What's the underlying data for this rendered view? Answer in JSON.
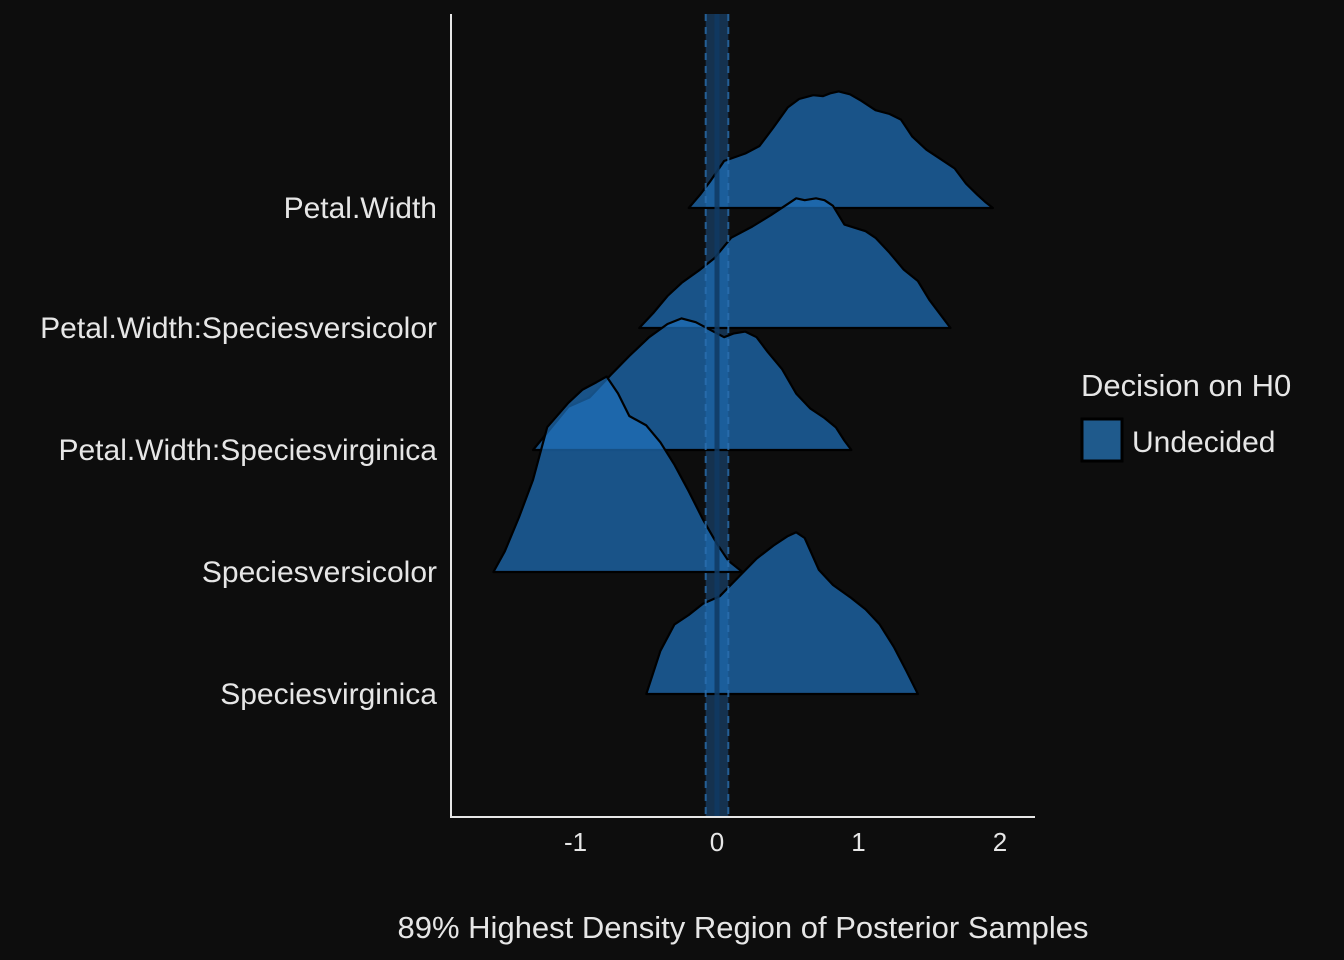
{
  "chart_data": {
    "type": "ridgeline density",
    "xlabel": "89% Highest Density Region of Posterior Samples",
    "ylabel": "",
    "xlim": [
      -1.9,
      2.25
    ],
    "xticks": [
      "-1",
      "0",
      "1",
      "2"
    ],
    "xtick_values": [
      -1,
      0,
      1,
      2
    ],
    "rope": {
      "low": -0.08,
      "high": 0.08,
      "center": 0
    },
    "grid": false,
    "legend": {
      "title": "Decision on H0",
      "position": "right",
      "entries": [
        {
          "label": "Undecided",
          "color": "#1f5a8c"
        }
      ]
    },
    "colors": {
      "density_fill": "#1f6fb8",
      "density_stroke": "#000000",
      "rope_fill": "#1e5fa0",
      "background": "#0d0d0d",
      "axis": "#e6e6e6"
    },
    "series": [
      {
        "name": "Petal.Width",
        "hdi": [
          -0.2,
          1.95
        ],
        "density": [
          [
            -0.2,
            0.0
          ],
          [
            -0.12,
            0.14
          ],
          [
            -0.05,
            0.28
          ],
          [
            0.05,
            0.5
          ],
          [
            0.2,
            0.58
          ],
          [
            0.3,
            0.66
          ],
          [
            0.4,
            0.86
          ],
          [
            0.5,
            1.07
          ],
          [
            0.58,
            1.16
          ],
          [
            0.68,
            1.2
          ],
          [
            0.75,
            1.19
          ],
          [
            0.8,
            1.22
          ],
          [
            0.86,
            1.24
          ],
          [
            0.94,
            1.21
          ],
          [
            1.02,
            1.14
          ],
          [
            1.12,
            1.04
          ],
          [
            1.22,
            1.0
          ],
          [
            1.3,
            0.94
          ],
          [
            1.38,
            0.76
          ],
          [
            1.48,
            0.62
          ],
          [
            1.58,
            0.52
          ],
          [
            1.68,
            0.42
          ],
          [
            1.76,
            0.26
          ],
          [
            1.84,
            0.14
          ],
          [
            1.9,
            0.06
          ],
          [
            1.95,
            0.0
          ]
        ]
      },
      {
        "name": "Petal.Width:Speciesversicolor",
        "hdi": [
          -0.55,
          1.65
        ],
        "density": [
          [
            -0.55,
            0.0
          ],
          [
            -0.45,
            0.16
          ],
          [
            -0.35,
            0.34
          ],
          [
            -0.25,
            0.48
          ],
          [
            -0.12,
            0.62
          ],
          [
            -0.02,
            0.74
          ],
          [
            0.1,
            0.96
          ],
          [
            0.25,
            1.08
          ],
          [
            0.38,
            1.2
          ],
          [
            0.5,
            1.32
          ],
          [
            0.56,
            1.38
          ],
          [
            0.62,
            1.36
          ],
          [
            0.7,
            1.38
          ],
          [
            0.76,
            1.36
          ],
          [
            0.82,
            1.3
          ],
          [
            0.9,
            1.1
          ],
          [
            1.05,
            1.03
          ],
          [
            1.12,
            0.96
          ],
          [
            1.22,
            0.8
          ],
          [
            1.32,
            0.62
          ],
          [
            1.42,
            0.5
          ],
          [
            1.5,
            0.3
          ],
          [
            1.58,
            0.14
          ],
          [
            1.65,
            0.0
          ]
        ]
      },
      {
        "name": "Petal.Width:Speciesvirginica",
        "hdi": [
          -1.3,
          0.95
        ],
        "density": [
          [
            -1.3,
            0.0
          ],
          [
            -1.05,
            0.46
          ],
          [
            -0.9,
            0.56
          ],
          [
            -0.75,
            0.8
          ],
          [
            -0.62,
            1.0
          ],
          [
            -0.48,
            1.2
          ],
          [
            -0.35,
            1.34
          ],
          [
            -0.25,
            1.4
          ],
          [
            -0.15,
            1.36
          ],
          [
            -0.05,
            1.28
          ],
          [
            0.05,
            1.2
          ],
          [
            0.12,
            1.24
          ],
          [
            0.2,
            1.26
          ],
          [
            0.28,
            1.2
          ],
          [
            0.36,
            1.04
          ],
          [
            0.46,
            0.86
          ],
          [
            0.56,
            0.6
          ],
          [
            0.66,
            0.44
          ],
          [
            0.76,
            0.34
          ],
          [
            0.84,
            0.24
          ],
          [
            0.9,
            0.1
          ],
          [
            0.95,
            0.0
          ]
        ]
      },
      {
        "name": "Speciesversicolor",
        "hdi": [
          -1.58,
          0.18
        ],
        "density": [
          [
            -1.58,
            0.0
          ],
          [
            -1.5,
            0.22
          ],
          [
            -1.4,
            0.58
          ],
          [
            -1.3,
            0.98
          ],
          [
            -1.2,
            1.54
          ],
          [
            -1.05,
            1.8
          ],
          [
            -0.95,
            1.94
          ],
          [
            -0.85,
            2.02
          ],
          [
            -0.78,
            2.08
          ],
          [
            -0.7,
            1.9
          ],
          [
            -0.62,
            1.66
          ],
          [
            -0.5,
            1.56
          ],
          [
            -0.4,
            1.38
          ],
          [
            -0.3,
            1.14
          ],
          [
            -0.2,
            0.86
          ],
          [
            -0.1,
            0.56
          ],
          [
            0.0,
            0.3
          ],
          [
            0.08,
            0.12
          ],
          [
            0.18,
            0.0
          ]
        ]
      },
      {
        "name": "Speciesvirginica",
        "hdi": [
          -0.5,
          1.42
        ],
        "density": [
          [
            -0.5,
            0.0
          ],
          [
            -0.4,
            0.46
          ],
          [
            -0.3,
            0.74
          ],
          [
            -0.2,
            0.84
          ],
          [
            -0.1,
            0.96
          ],
          [
            0.02,
            1.04
          ],
          [
            0.15,
            1.24
          ],
          [
            0.28,
            1.44
          ],
          [
            0.4,
            1.58
          ],
          [
            0.5,
            1.68
          ],
          [
            0.56,
            1.72
          ],
          [
            0.62,
            1.66
          ],
          [
            0.72,
            1.32
          ],
          [
            0.82,
            1.16
          ],
          [
            0.95,
            1.02
          ],
          [
            1.05,
            0.9
          ],
          [
            1.15,
            0.74
          ],
          [
            1.25,
            0.5
          ],
          [
            1.34,
            0.24
          ],
          [
            1.42,
            0.0
          ]
        ]
      }
    ]
  }
}
